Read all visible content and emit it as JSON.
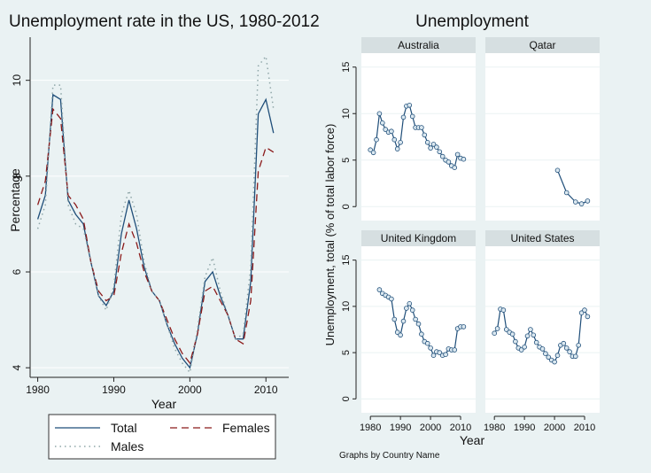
{
  "chart_data": [
    {
      "type": "line",
      "title": "Unemployment rate in the US, 1980-2012",
      "xlabel": "Year",
      "ylabel": "Percentage",
      "xlim": [
        1979,
        2013
      ],
      "ylim": [
        3.8,
        10.9
      ],
      "xticks": [
        "1980",
        "1990",
        "2000",
        "2010"
      ],
      "yticks": [
        "4",
        "6",
        "8",
        "10"
      ],
      "legend_position": "bottom",
      "x": [
        1980,
        1981,
        1982,
        1983,
        1984,
        1985,
        1986,
        1987,
        1988,
        1989,
        1990,
        1991,
        1992,
        1993,
        1994,
        1995,
        1996,
        1997,
        1998,
        1999,
        2000,
        2001,
        2002,
        2003,
        2004,
        2005,
        2006,
        2007,
        2008,
        2009,
        2010,
        2011
      ],
      "series": [
        {
          "name": "Total",
          "style": "solid",
          "color": "#1f4e79",
          "values": [
            7.1,
            7.6,
            9.7,
            9.6,
            7.5,
            7.2,
            7.0,
            6.2,
            5.5,
            5.3,
            5.6,
            6.8,
            7.5,
            6.9,
            6.1,
            5.6,
            5.4,
            4.9,
            4.5,
            4.2,
            4.0,
            4.7,
            5.8,
            6.0,
            5.5,
            5.1,
            4.6,
            4.6,
            5.8,
            9.3,
            9.6,
            8.9
          ]
        },
        {
          "name": "Females",
          "style": "dashed",
          "color": "#8b1a1a",
          "values": [
            7.4,
            7.9,
            9.4,
            9.2,
            7.6,
            7.4,
            7.1,
            6.2,
            5.6,
            5.4,
            5.5,
            6.4,
            7.0,
            6.6,
            6.0,
            5.6,
            5.4,
            5.0,
            4.6,
            4.3,
            4.1,
            4.7,
            5.6,
            5.7,
            5.4,
            5.1,
            4.6,
            4.5,
            5.4,
            8.1,
            8.6,
            8.5
          ]
        },
        {
          "name": "Males",
          "style": "dotted",
          "color": "#8fa6a8",
          "values": [
            6.9,
            7.4,
            9.9,
            9.9,
            7.4,
            7.0,
            6.9,
            6.2,
            5.5,
            5.2,
            5.7,
            7.2,
            7.7,
            7.2,
            6.2,
            5.6,
            5.4,
            4.9,
            4.4,
            4.1,
            3.9,
            4.8,
            5.9,
            6.3,
            5.6,
            5.1,
            4.6,
            4.7,
            6.1,
            10.3,
            10.5,
            9.4
          ]
        }
      ]
    },
    {
      "type": "line",
      "title": "Unemployment",
      "xlabel": "Year",
      "ylabel": "Unemployment, total (% of total labor force)",
      "xlim": [
        1977,
        2015
      ],
      "ylim": [
        -1.5,
        16.5
      ],
      "xticks": [
        "1980",
        "1990",
        "2000",
        "2010"
      ],
      "yticks": [
        "0",
        "5",
        "10",
        "15"
      ],
      "note": "Graphs by Country Name",
      "marker": "circle",
      "panels": [
        {
          "name": "Australia",
          "x": [
            1980,
            1981,
            1982,
            1983,
            1984,
            1985,
            1986,
            1987,
            1988,
            1989,
            1990,
            1991,
            1992,
            1993,
            1994,
            1995,
            1996,
            1997,
            1998,
            1999,
            2000,
            2001,
            2002,
            2003,
            2004,
            2005,
            2006,
            2007,
            2008,
            2009,
            2010,
            2011
          ],
          "values": [
            6.1,
            5.8,
            7.2,
            10.0,
            9.0,
            8.3,
            8.0,
            8.1,
            7.2,
            6.2,
            6.9,
            9.6,
            10.8,
            10.9,
            9.7,
            8.5,
            8.5,
            8.5,
            7.7,
            6.9,
            6.3,
            6.7,
            6.4,
            5.9,
            5.4,
            5.0,
            4.8,
            4.4,
            4.2,
            5.6,
            5.2,
            5.1
          ]
        },
        {
          "name": "Qatar",
          "x": [
            2001,
            2004,
            2007,
            2009,
            2011
          ],
          "values": [
            3.9,
            1.5,
            0.5,
            0.3,
            0.6
          ]
        },
        {
          "name": "United Kingdom",
          "x": [
            1983,
            1984,
            1985,
            1986,
            1987,
            1988,
            1989,
            1990,
            1991,
            1992,
            1993,
            1994,
            1995,
            1996,
            1997,
            1998,
            1999,
            2000,
            2001,
            2002,
            2003,
            2004,
            2005,
            2006,
            2007,
            2008,
            2009,
            2010,
            2011
          ],
          "values": [
            11.8,
            11.4,
            11.2,
            11.0,
            10.8,
            8.6,
            7.2,
            6.9,
            8.4,
            9.8,
            10.3,
            9.6,
            8.6,
            8.1,
            7.0,
            6.2,
            6.0,
            5.5,
            4.7,
            5.1,
            5.0,
            4.7,
            4.8,
            5.4,
            5.3,
            5.3,
            7.6,
            7.8,
            7.8
          ]
        },
        {
          "name": "United States",
          "x": [
            1980,
            1981,
            1982,
            1983,
            1984,
            1985,
            1986,
            1987,
            1988,
            1989,
            1990,
            1991,
            1992,
            1993,
            1994,
            1995,
            1996,
            1997,
            1998,
            1999,
            2000,
            2001,
            2002,
            2003,
            2004,
            2005,
            2006,
            2007,
            2008,
            2009,
            2010,
            2011
          ],
          "values": [
            7.1,
            7.6,
            9.7,
            9.6,
            7.5,
            7.2,
            7.0,
            6.2,
            5.5,
            5.3,
            5.6,
            6.8,
            7.5,
            6.9,
            6.1,
            5.6,
            5.4,
            4.9,
            4.5,
            4.2,
            4.0,
            4.7,
            5.8,
            6.0,
            5.5,
            5.1,
            4.6,
            4.6,
            5.8,
            9.3,
            9.6,
            8.9
          ]
        }
      ]
    }
  ]
}
